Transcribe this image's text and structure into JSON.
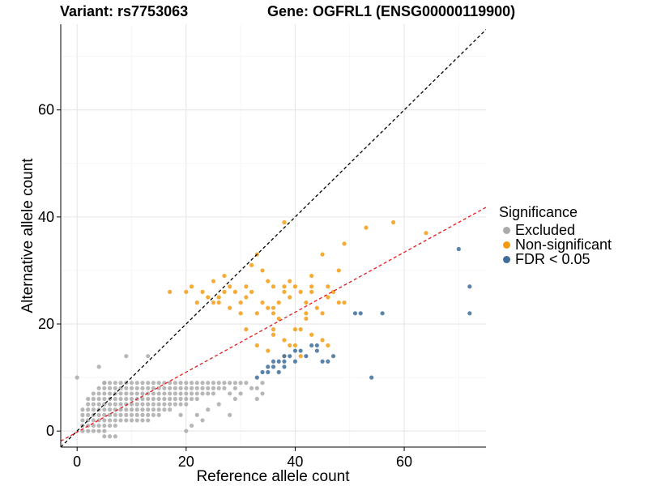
{
  "chart_data": {
    "type": "scatter",
    "title_left": "Variant: rs7753063",
    "title_right": "Gene: OGFRL1 (ENSG00000119900)",
    "xlabel": "Reference allele count",
    "ylabel": "Alternative allele count",
    "xlim": [
      -3,
      75
    ],
    "ylim": [
      -3,
      76
    ],
    "x_ticks": [
      0,
      20,
      40,
      60
    ],
    "y_ticks": [
      0,
      20,
      40,
      60
    ],
    "grid": true,
    "legend": {
      "title": "Significance",
      "position": "right",
      "items": [
        {
          "label": "Excluded",
          "color": "#aaaaaa"
        },
        {
          "label": "Non-significant",
          "color": "#f39c12"
        },
        {
          "label": "FDR < 0.05",
          "color": "#3f6e9c"
        }
      ]
    },
    "reference_lines": [
      {
        "name": "identity-line",
        "slope": 1.0,
        "intercept": 0,
        "color": "#000000",
        "style": "dashed"
      },
      {
        "name": "fitted-line",
        "slope": 0.56,
        "intercept": -0.2,
        "color": "#e41a1c",
        "style": "dashed"
      }
    ],
    "series": [
      {
        "name": "Excluded",
        "color": "#aaaaaa",
        "points": [
          [
            0,
            10
          ],
          [
            4,
            12
          ],
          [
            5,
            9
          ],
          [
            9,
            14
          ],
          [
            13,
            14
          ],
          [
            1,
            0
          ],
          [
            2,
            0
          ],
          [
            3,
            0
          ],
          [
            4,
            0
          ],
          [
            5,
            0
          ],
          [
            1,
            1
          ],
          [
            2,
            1
          ],
          [
            3,
            1
          ],
          [
            4,
            1
          ],
          [
            5,
            1
          ],
          [
            6,
            1
          ],
          [
            7,
            1
          ],
          [
            1,
            2
          ],
          [
            2,
            2
          ],
          [
            3,
            2
          ],
          [
            4,
            2
          ],
          [
            5,
            2
          ],
          [
            6,
            2
          ],
          [
            7,
            2
          ],
          [
            8,
            2
          ],
          [
            9,
            2
          ],
          [
            10,
            2
          ],
          [
            11,
            2
          ],
          [
            12,
            2
          ],
          [
            13,
            2
          ],
          [
            1,
            3
          ],
          [
            2,
            3
          ],
          [
            3,
            3
          ],
          [
            4,
            3
          ],
          [
            5,
            3
          ],
          [
            6,
            3
          ],
          [
            7,
            3
          ],
          [
            8,
            3
          ],
          [
            9,
            3
          ],
          [
            10,
            3
          ],
          [
            11,
            3
          ],
          [
            12,
            3
          ],
          [
            13,
            3
          ],
          [
            14,
            3
          ],
          [
            15,
            3
          ],
          [
            1,
            4
          ],
          [
            2,
            4
          ],
          [
            3,
            4
          ],
          [
            4,
            4
          ],
          [
            5,
            4
          ],
          [
            6,
            4
          ],
          [
            7,
            4
          ],
          [
            8,
            4
          ],
          [
            9,
            4
          ],
          [
            10,
            4
          ],
          [
            11,
            4
          ],
          [
            12,
            4
          ],
          [
            13,
            4
          ],
          [
            14,
            4
          ],
          [
            15,
            4
          ],
          [
            16,
            4
          ],
          [
            17,
            4
          ],
          [
            2,
            5
          ],
          [
            3,
            5
          ],
          [
            4,
            5
          ],
          [
            5,
            5
          ],
          [
            6,
            5
          ],
          [
            7,
            5
          ],
          [
            8,
            5
          ],
          [
            9,
            5
          ],
          [
            10,
            5
          ],
          [
            11,
            5
          ],
          [
            12,
            5
          ],
          [
            13,
            5
          ],
          [
            14,
            5
          ],
          [
            15,
            5
          ],
          [
            16,
            5
          ],
          [
            17,
            5
          ],
          [
            18,
            5
          ],
          [
            19,
            5
          ],
          [
            20,
            5
          ],
          [
            2,
            6
          ],
          [
            3,
            6
          ],
          [
            4,
            6
          ],
          [
            5,
            6
          ],
          [
            6,
            6
          ],
          [
            7,
            6
          ],
          [
            8,
            6
          ],
          [
            9,
            6
          ],
          [
            10,
            6
          ],
          [
            11,
            6
          ],
          [
            12,
            6
          ],
          [
            13,
            6
          ],
          [
            14,
            6
          ],
          [
            15,
            6
          ],
          [
            16,
            6
          ],
          [
            17,
            6
          ],
          [
            18,
            6
          ],
          [
            19,
            6
          ],
          [
            20,
            6
          ],
          [
            21,
            6
          ],
          [
            22,
            6
          ],
          [
            3,
            7
          ],
          [
            4,
            7
          ],
          [
            5,
            7
          ],
          [
            6,
            7
          ],
          [
            7,
            7
          ],
          [
            8,
            7
          ],
          [
            9,
            7
          ],
          [
            10,
            7
          ],
          [
            11,
            7
          ],
          [
            12,
            7
          ],
          [
            13,
            7
          ],
          [
            14,
            7
          ],
          [
            15,
            7
          ],
          [
            16,
            7
          ],
          [
            17,
            7
          ],
          [
            18,
            7
          ],
          [
            19,
            7
          ],
          [
            20,
            7
          ],
          [
            21,
            7
          ],
          [
            22,
            7
          ],
          [
            23,
            7
          ],
          [
            24,
            7
          ],
          [
            25,
            7
          ],
          [
            4,
            8
          ],
          [
            5,
            8
          ],
          [
            6,
            8
          ],
          [
            7,
            8
          ],
          [
            8,
            8
          ],
          [
            9,
            8
          ],
          [
            10,
            8
          ],
          [
            11,
            8
          ],
          [
            12,
            8
          ],
          [
            13,
            8
          ],
          [
            14,
            8
          ],
          [
            15,
            8
          ],
          [
            16,
            8
          ],
          [
            17,
            8
          ],
          [
            18,
            8
          ],
          [
            19,
            8
          ],
          [
            20,
            8
          ],
          [
            21,
            8
          ],
          [
            22,
            8
          ],
          [
            23,
            8
          ],
          [
            24,
            8
          ],
          [
            25,
            8
          ],
          [
            26,
            8
          ],
          [
            27,
            8
          ],
          [
            5,
            9
          ],
          [
            6,
            9
          ],
          [
            7,
            9
          ],
          [
            8,
            9
          ],
          [
            9,
            9
          ],
          [
            10,
            9
          ],
          [
            11,
            9
          ],
          [
            12,
            9
          ],
          [
            13,
            9
          ],
          [
            14,
            9
          ],
          [
            15,
            9
          ],
          [
            16,
            9
          ],
          [
            17,
            9
          ],
          [
            18,
            9
          ],
          [
            19,
            9
          ],
          [
            20,
            9
          ],
          [
            21,
            9
          ],
          [
            22,
            9
          ],
          [
            23,
            9
          ],
          [
            24,
            9
          ],
          [
            25,
            9
          ],
          [
            26,
            9
          ],
          [
            27,
            9
          ],
          [
            28,
            9
          ],
          [
            29,
            9
          ],
          [
            30,
            9
          ],
          [
            31,
            9
          ],
          [
            20,
            0
          ],
          [
            21,
            1
          ],
          [
            19,
            3
          ],
          [
            22,
            3
          ],
          [
            24,
            4
          ],
          [
            26,
            5
          ],
          [
            29,
            6
          ],
          [
            28,
            7
          ],
          [
            30,
            7
          ],
          [
            32,
            8
          ],
          [
            34,
            7
          ],
          [
            33,
            6
          ],
          [
            28,
            3
          ],
          [
            23,
            2
          ],
          [
            5,
            -1
          ],
          [
            6,
            -1
          ],
          [
            7,
            -1
          ],
          [
            33,
            8
          ],
          [
            29,
            8
          ],
          [
            34,
            9
          ]
        ]
      },
      {
        "name": "Non-significant",
        "color": "#f39c12",
        "points": [
          [
            21,
            27
          ],
          [
            17,
            26
          ],
          [
            25,
            28
          ],
          [
            27,
            29
          ],
          [
            28,
            23
          ],
          [
            23,
            26
          ],
          [
            24,
            25
          ],
          [
            27,
            26
          ],
          [
            30,
            24
          ],
          [
            31,
            25
          ],
          [
            32,
            31
          ],
          [
            32,
            26
          ],
          [
            33,
            33
          ],
          [
            34,
            30
          ],
          [
            34,
            24
          ],
          [
            35,
            28
          ],
          [
            36,
            27
          ],
          [
            36,
            23
          ],
          [
            38,
            39
          ],
          [
            38,
            27
          ],
          [
            38,
            26
          ],
          [
            39,
            25
          ],
          [
            40,
            27
          ],
          [
            41,
            26
          ],
          [
            42,
            24
          ],
          [
            43,
            29
          ],
          [
            43,
            27
          ],
          [
            45,
            33
          ],
          [
            46,
            27
          ],
          [
            46,
            25
          ],
          [
            47,
            26
          ],
          [
            48,
            30
          ],
          [
            48,
            24
          ],
          [
            49,
            35
          ],
          [
            49,
            24
          ],
          [
            53,
            38
          ],
          [
            58,
            39
          ],
          [
            64,
            37
          ],
          [
            39,
            28
          ],
          [
            25,
            24
          ],
          [
            26,
            25
          ],
          [
            28,
            27
          ],
          [
            29,
            26
          ],
          [
            31,
            27
          ],
          [
            20,
            26
          ],
          [
            22,
            24
          ],
          [
            26,
            24
          ],
          [
            37,
            24
          ],
          [
            43,
            26
          ],
          [
            36,
            22
          ],
          [
            35,
            23
          ],
          [
            33,
            22
          ],
          [
            30,
            22
          ],
          [
            44,
            23
          ],
          [
            37,
            21
          ],
          [
            42,
            22
          ],
          [
            31,
            19
          ],
          [
            33,
            16
          ],
          [
            35,
            15
          ],
          [
            36,
            18
          ],
          [
            38,
            17
          ],
          [
            38,
            14
          ],
          [
            39,
            16
          ],
          [
            40,
            19
          ],
          [
            40,
            16
          ],
          [
            41,
            19
          ],
          [
            41,
            14
          ],
          [
            42,
            21
          ],
          [
            43,
            18
          ],
          [
            45,
            22
          ],
          [
            45,
            17
          ],
          [
            46,
            16
          ],
          [
            36,
            19
          ]
        ]
      },
      {
        "name": "FDR < 0.05",
        "color": "#3f6e9c",
        "points": [
          [
            33,
            10
          ],
          [
            34,
            11
          ],
          [
            35,
            11
          ],
          [
            35,
            12
          ],
          [
            36,
            12
          ],
          [
            36,
            13
          ],
          [
            37,
            13
          ],
          [
            37,
            11
          ],
          [
            38,
            12
          ],
          [
            38,
            13
          ],
          [
            38,
            14
          ],
          [
            39,
            14
          ],
          [
            40,
            15
          ],
          [
            40,
            13
          ],
          [
            41,
            15
          ],
          [
            42,
            14
          ],
          [
            43,
            16
          ],
          [
            44,
            16
          ],
          [
            44,
            15
          ],
          [
            45,
            13
          ],
          [
            46,
            13
          ],
          [
            47,
            14
          ],
          [
            51,
            22
          ],
          [
            52,
            22
          ],
          [
            56,
            22
          ],
          [
            54,
            10
          ],
          [
            70,
            34
          ],
          [
            72,
            27
          ],
          [
            72,
            22
          ]
        ]
      }
    ]
  }
}
